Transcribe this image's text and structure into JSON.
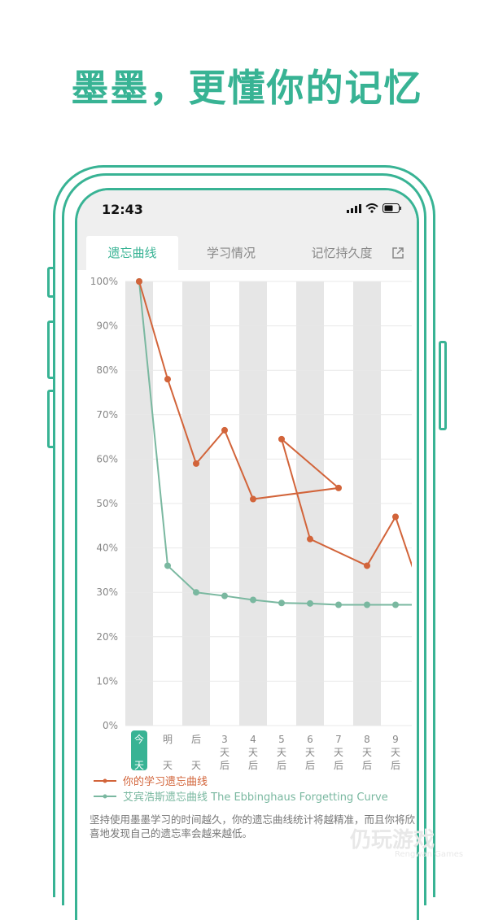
{
  "headline": "墨墨，更懂你的记忆",
  "status_bar": {
    "time": "12:43"
  },
  "tabs": [
    {
      "label": "遗忘曲线",
      "active": true
    },
    {
      "label": "学习情况"
    },
    {
      "label": "记忆持久度"
    }
  ],
  "colors": {
    "brand": "#38b394",
    "user_curve": "#d2643a",
    "ebbinghaus_curve": "#7ab8a0"
  },
  "chart_data": {
    "type": "line",
    "y_ticks": [
      "100%",
      "90%",
      "80%",
      "70%",
      "60%",
      "50%",
      "40%",
      "30%",
      "20%",
      "10%",
      "0%"
    ],
    "ylim": [
      0,
      100
    ],
    "categories": [
      [
        "今",
        "天"
      ],
      [
        "明",
        "天"
      ],
      [
        "后",
        "天"
      ],
      [
        "3",
        "天",
        "后"
      ],
      [
        "4",
        "天",
        "后"
      ],
      [
        "5",
        "天",
        "后"
      ],
      [
        "6",
        "天",
        "后"
      ],
      [
        "7",
        "天",
        "后"
      ],
      [
        "8",
        "天",
        "后"
      ],
      [
        "9",
        "天",
        "后"
      ]
    ],
    "highlighted_category": 0,
    "series": [
      {
        "name": "你的学习遗忘曲线",
        "points": [
          [
            0,
            100
          ],
          [
            1,
            78
          ],
          [
            2,
            59
          ],
          [
            3,
            66.5
          ],
          [
            4,
            51
          ],
          [
            7,
            53.5
          ],
          [
            5,
            64.5
          ],
          [
            6,
            42
          ],
          [
            8,
            36
          ],
          [
            9,
            47
          ],
          [
            10,
            28
          ]
        ]
      },
      {
        "name": "艾宾浩斯遗忘曲线 The Ebbinghaus Forgetting Curve",
        "points": [
          [
            0,
            100
          ],
          [
            1,
            36
          ],
          [
            2,
            30
          ],
          [
            3,
            29.2
          ],
          [
            4,
            28.3
          ],
          [
            5,
            27.6
          ],
          [
            6,
            27.5
          ],
          [
            7,
            27.2
          ],
          [
            8,
            27.2
          ],
          [
            9,
            27.2
          ],
          [
            10,
            27.2
          ]
        ]
      }
    ]
  },
  "description": "坚持使用墨墨学习的时间越久，你的遗忘曲线统计将越精准，而且你将欣喜地发现自己的遗忘率会越来越低。",
  "watermark": {
    "text": "仍玩游戏",
    "sub": "Rengwan Games"
  }
}
